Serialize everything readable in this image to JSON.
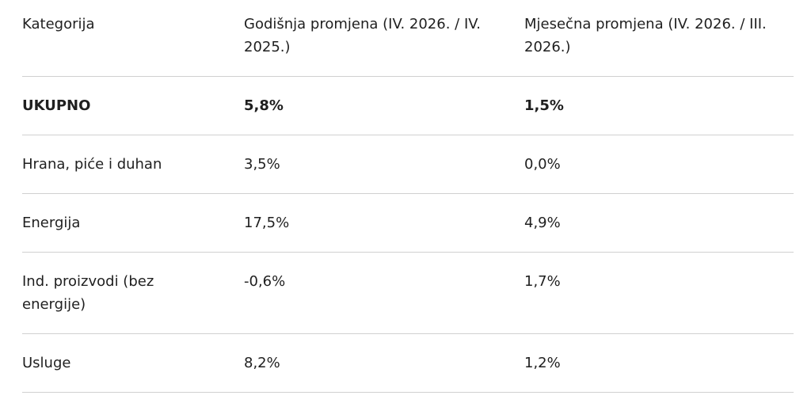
{
  "table": {
    "header": [
      "Kategorija",
      "Godišnja promjena (IV. 2026. / IV. 2025.)",
      "Mjesečna promjena (IV. 2026. / III. 2026.)"
    ],
    "rows": [
      [
        "UKUPNO",
        "5,8%",
        "1,5%"
      ],
      [
        "Hrana, piće i duhan",
        "3,5%",
        "0,0%"
      ],
      [
        "Energija",
        "17,5%",
        "4,9%"
      ],
      [
        "Ind. proizvodi (bez energije)",
        "-0,6%",
        "1,7%"
      ],
      [
        "Usluge",
        "8,2%",
        "1,2%"
      ]
    ]
  }
}
